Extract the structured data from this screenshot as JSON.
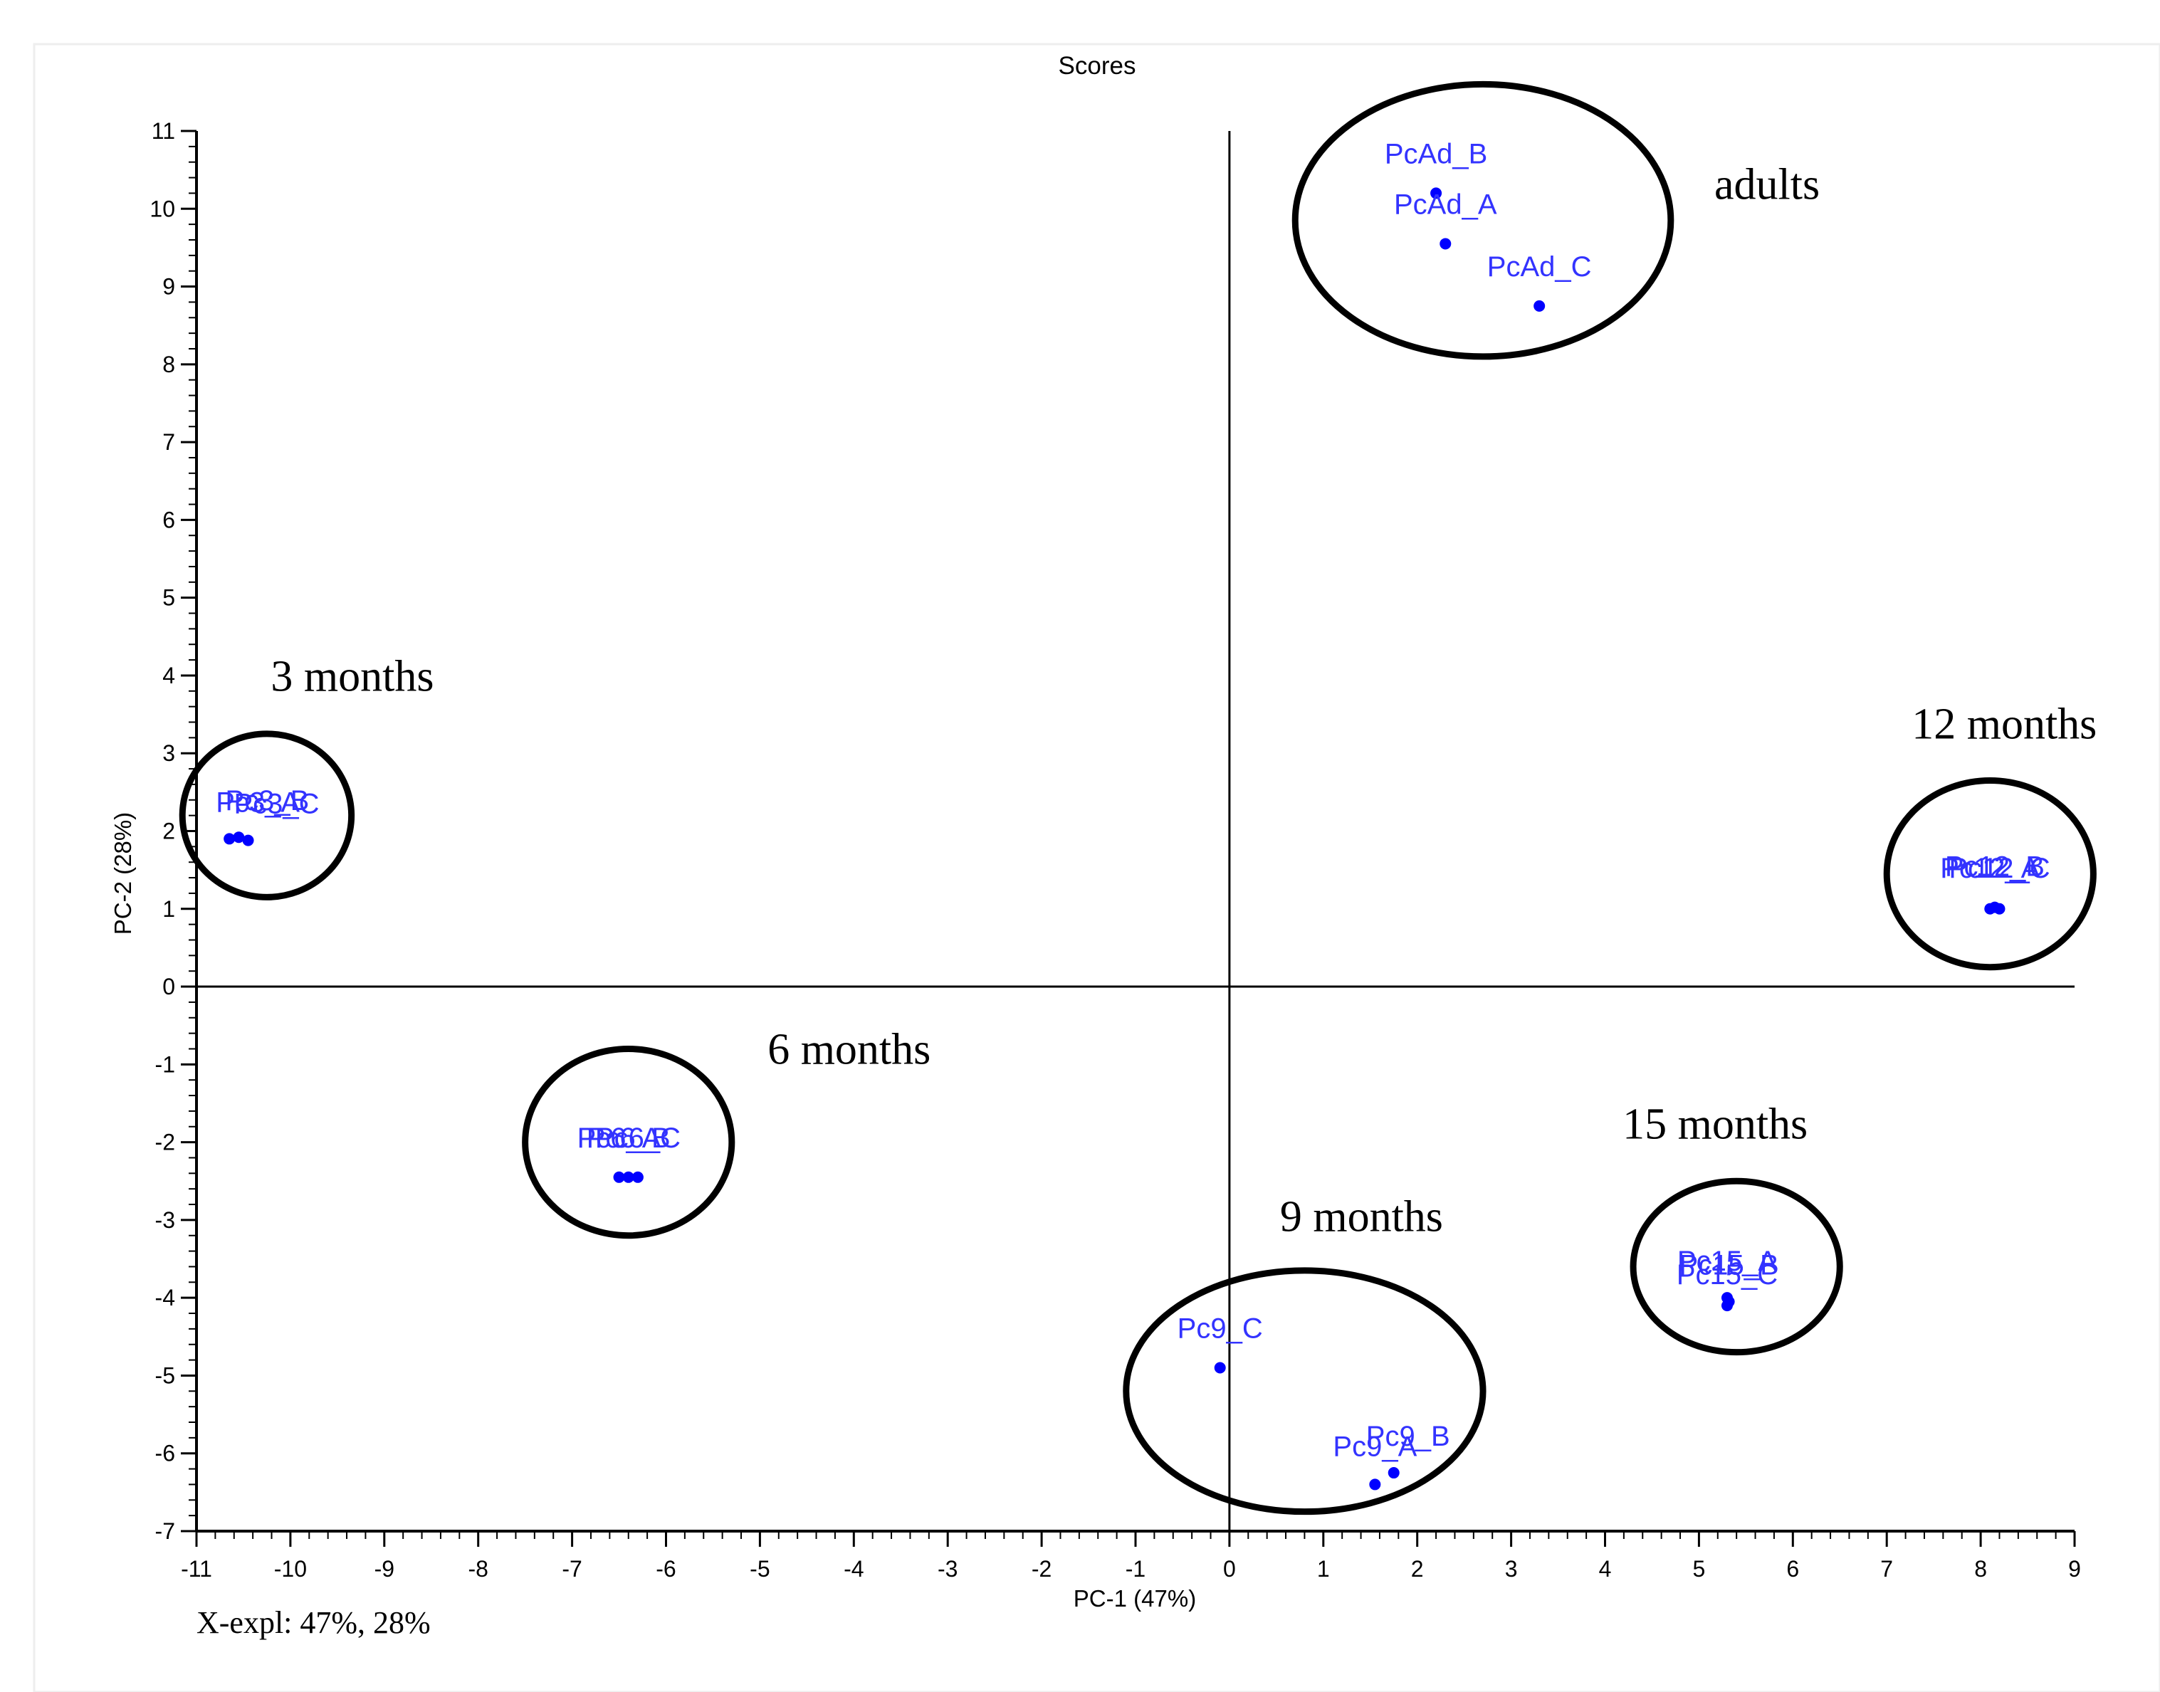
{
  "chart_data": {
    "type": "scatter",
    "title": "Scores",
    "xlabel": "PC-1 (47%)",
    "ylabel": "PC-2 (28%)",
    "xlim": [
      -11,
      9
    ],
    "ylim": [
      -7,
      11
    ],
    "xticks": [
      -11,
      -10,
      -9,
      -8,
      -7,
      -6,
      -5,
      -4,
      -3,
      -2,
      -1,
      0,
      1,
      2,
      3,
      4,
      5,
      6,
      7,
      8,
      9
    ],
    "xtick_labels": [
      "-11",
      "-10",
      "-9",
      "-8",
      "-7",
      "-6",
      "-5",
      "-4",
      "-3",
      "-2",
      "-1",
      "0",
      "1",
      "2",
      "3",
      "4",
      "5",
      "6",
      "7",
      "8",
      "9"
    ],
    "yticks": [
      -7,
      -6,
      -5,
      -4,
      -3,
      -2,
      -1,
      0,
      1,
      2,
      3,
      4,
      5,
      6,
      7,
      8,
      9,
      10,
      11
    ],
    "ytick_labels": [
      "-7",
      "-6",
      "-5",
      "-4",
      "-3",
      "-2",
      "-1",
      "0",
      "1",
      "2",
      "3",
      "4",
      "5",
      "6",
      "7",
      "8",
      "9",
      "10",
      "11"
    ],
    "explained_variance_note": "X-expl: 47%, 28%",
    "point_color": "#0000ff",
    "label_color": "#3333ff",
    "points": [
      {
        "label": "PcAd_B",
        "x": 2.2,
        "y": 10.2
      },
      {
        "label": "PcAd_A",
        "x": 2.3,
        "y": 9.55
      },
      {
        "label": "PcAd_C",
        "x": 3.3,
        "y": 8.75
      },
      {
        "label": "Pc3_A",
        "x": -10.65,
        "y": 1.9
      },
      {
        "label": "Pc3_B",
        "x": -10.55,
        "y": 1.92
      },
      {
        "label": "Pc3_C",
        "x": -10.45,
        "y": 1.88
      },
      {
        "label": "Pc6_A",
        "x": -6.5,
        "y": -2.45
      },
      {
        "label": "Pc6_B",
        "x": -6.4,
        "y": -2.45
      },
      {
        "label": "Pc6_C",
        "x": -6.3,
        "y": -2.45
      },
      {
        "label": "Pc9_C",
        "x": -0.1,
        "y": -4.9
      },
      {
        "label": "Pc9_B",
        "x": 1.75,
        "y": -6.25
      },
      {
        "label": "Pc9_A",
        "x": 1.55,
        "y": -6.4
      },
      {
        "label": "Pc12_A",
        "x": 8.1,
        "y": 1.0
      },
      {
        "label": "Pc12_B",
        "x": 8.15,
        "y": 1.02
      },
      {
        "label": "Pc12_C",
        "x": 8.2,
        "y": 1.0
      },
      {
        "label": "Pc15_A",
        "x": 5.3,
        "y": -4.0
      },
      {
        "label": "Pc15_B",
        "x": 5.32,
        "y": -4.05
      },
      {
        "label": "Pc15_C",
        "x": 5.3,
        "y": -4.1
      }
    ],
    "groups": [
      {
        "name": "adults",
        "cx": 2.7,
        "cy": 9.85,
        "rx": 2.0,
        "ry": 1.75
      },
      {
        "name": "3 months",
        "cx": -10.25,
        "cy": 2.2,
        "rx": 0.9,
        "ry": 1.05
      },
      {
        "name": "6 months",
        "cx": -6.4,
        "cy": -2.0,
        "rx": 1.1,
        "ry": 1.2
      },
      {
        "name": "9 months",
        "cx": 0.8,
        "cy": -5.2,
        "rx": 1.9,
        "ry": 1.55
      },
      {
        "name": "12 months",
        "cx": 8.1,
        "cy": 1.45,
        "rx": 1.1,
        "ry": 1.2
      },
      {
        "name": "15 months",
        "cx": 5.4,
        "cy": -3.6,
        "rx": 1.1,
        "ry": 1.1
      }
    ]
  }
}
